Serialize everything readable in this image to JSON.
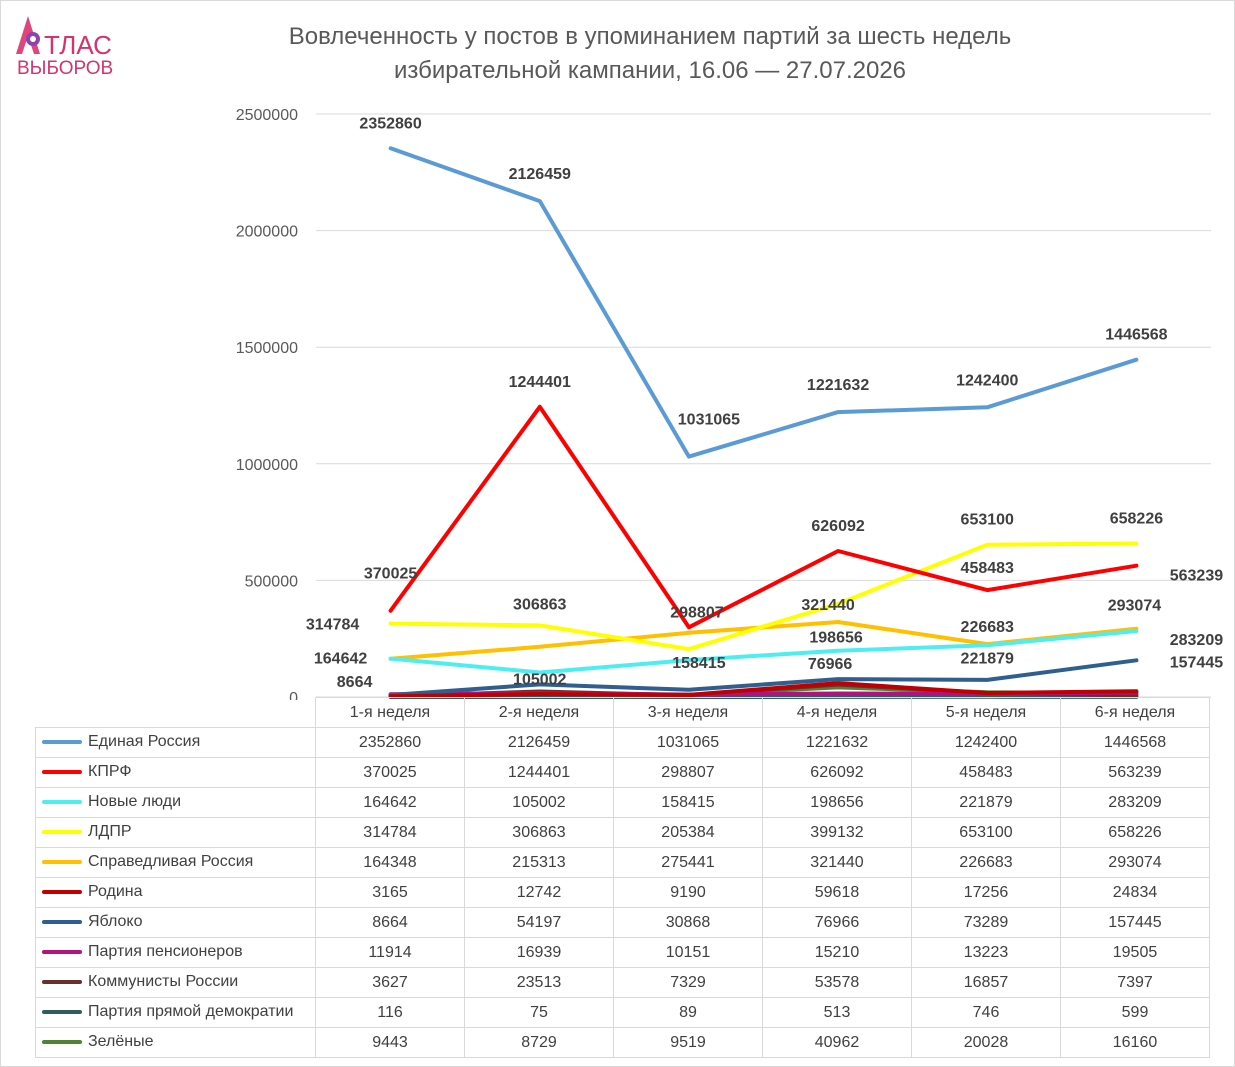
{
  "logo": {
    "line1": "ТЛАС",
    "line2": "ВЫБОРОВ",
    "accent": "#d6336c"
  },
  "title_line1": "Вовлеченность у постов в упоминанием партий за шесть недель",
  "title_line2": "избирательной кампании, 16.06 — 27.07.2026",
  "chart_data": {
    "type": "line",
    "title": "Вовлеченность у постов в упоминанием партий за шесть недель избирательной кампании, 16.06 — 27.07.2026",
    "xlabel": "",
    "ylabel": "",
    "ylim": [
      0,
      2500000
    ],
    "yticks": [
      "0",
      "500000",
      "1000000",
      "1500000",
      "2000000",
      "2500000"
    ],
    "grid": true,
    "legend": "data-table",
    "categories": [
      "1-я неделя",
      "2-я неделя",
      "3-я неделя",
      "4-я неделя",
      "5-я неделя",
      "6-я неделя"
    ],
    "series": [
      {
        "name": "Единая Россия",
        "color": "#5b9bd5",
        "values": [
          2352860,
          2126459,
          1031065,
          1221632,
          1242400,
          1446568
        ]
      },
      {
        "name": "КПРФ",
        "color": "#ff0000",
        "values": [
          370025,
          1244401,
          298807,
          626092,
          458483,
          563239
        ]
      },
      {
        "name": "Новые люди",
        "color": "#4dedf2",
        "values": [
          164642,
          105002,
          158415,
          198656,
          221879,
          283209
        ]
      },
      {
        "name": "ЛДПР",
        "color": "#ffff00",
        "values": [
          314784,
          306863,
          205384,
          399132,
          653100,
          658226
        ]
      },
      {
        "name": "Справедливая Россия",
        "color": "#ffc000",
        "values": [
          164348,
          215313,
          275441,
          321440,
          226683,
          293074
        ]
      },
      {
        "name": "Родина",
        "color": "#c00000",
        "values": [
          3165,
          12742,
          9190,
          59618,
          17256,
          24834
        ]
      },
      {
        "name": "Яблоко",
        "color": "#2e5f8f",
        "values": [
          8664,
          54197,
          30868,
          76966,
          73289,
          157445
        ]
      },
      {
        "name": "Партия пенсионеров",
        "color": "#b0127f",
        "values": [
          11914,
          16939,
          10151,
          15210,
          13223,
          19505
        ]
      },
      {
        "name": "Коммунисты России",
        "color": "#6b2e2e",
        "values": [
          3627,
          23513,
          7329,
          53578,
          16857,
          7397
        ]
      },
      {
        "name": "Партия прямой демократии",
        "color": "#2f5d62",
        "values": [
          116,
          75,
          89,
          513,
          746,
          599
        ]
      },
      {
        "name": "Зелёные",
        "color": "#548235",
        "values": [
          9443,
          8729,
          9519,
          40962,
          20028,
          16160
        ]
      }
    ],
    "data_labels": [
      {
        "series": 0,
        "point": 0,
        "text": "2352860"
      },
      {
        "series": 0,
        "point": 1,
        "text": "2126459"
      },
      {
        "series": 0,
        "point": 2,
        "text": "1031065"
      },
      {
        "series": 0,
        "point": 3,
        "text": "1221632"
      },
      {
        "series": 0,
        "point": 4,
        "text": "1242400"
      },
      {
        "series": 0,
        "point": 5,
        "text": "1446568"
      },
      {
        "series": 1,
        "point": 0,
        "text": "370025"
      },
      {
        "series": 1,
        "point": 1,
        "text": "1244401"
      },
      {
        "series": 1,
        "point": 2,
        "text": "298807"
      },
      {
        "series": 1,
        "point": 3,
        "text": "626092"
      },
      {
        "series": 1,
        "point": 4,
        "text": "458483"
      },
      {
        "series": 1,
        "point": 5,
        "text": "563239"
      },
      {
        "series": 2,
        "point": 0,
        "text": "164642"
      },
      {
        "series": 2,
        "point": 1,
        "text": "105002"
      },
      {
        "series": 2,
        "point": 2,
        "text": "158415"
      },
      {
        "series": 2,
        "point": 3,
        "text": "198656"
      },
      {
        "series": 2,
        "point": 4,
        "text": "221879"
      },
      {
        "series": 2,
        "point": 5,
        "text": "283209"
      },
      {
        "series": 3,
        "point": 0,
        "text": "314784"
      },
      {
        "series": 3,
        "point": 1,
        "text": "306863"
      },
      {
        "series": 3,
        "point": 4,
        "text": "653100"
      },
      {
        "series": 3,
        "point": 5,
        "text": "658226"
      },
      {
        "series": 4,
        "point": 3,
        "text": "321440"
      },
      {
        "series": 4,
        "point": 4,
        "text": "226683"
      },
      {
        "series": 4,
        "point": 5,
        "text": "293074"
      },
      {
        "series": 6,
        "point": 0,
        "text": "8664"
      },
      {
        "series": 6,
        "point": 3,
        "text": "76966"
      },
      {
        "series": 6,
        "point": 5,
        "text": "157445"
      }
    ]
  }
}
